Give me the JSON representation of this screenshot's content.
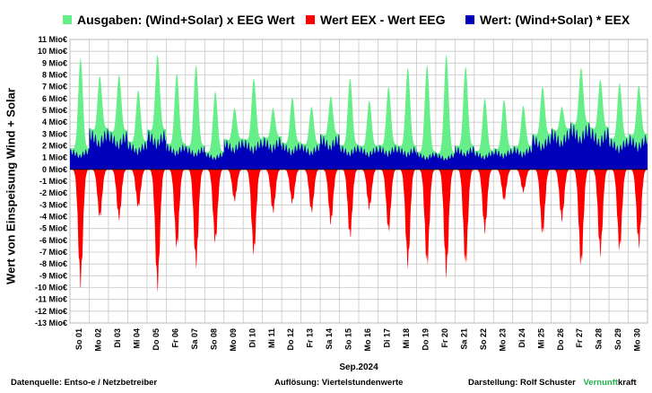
{
  "legend": [
    {
      "label": "Ausgaben: (Wind+Solar) x EEG Wert",
      "color": "#66ee88"
    },
    {
      "label": "Wert EEX - Wert EEG",
      "color": "#ff0000"
    },
    {
      "label": "Wert: (Wind+Solar) * EEX",
      "color": "#0000bb"
    }
  ],
  "footer": {
    "source": "Datenquelle:  Entso-e  / Netzbetreiber",
    "resolution": "Auflösung: Viertelstundenwerte",
    "author_prefix": "Darstellung:  Rolf Schuster",
    "brand_green": "Vernunft",
    "brand_black": "kraft"
  },
  "chart_data": {
    "type": "area",
    "ylabel": "Wert von Einspeisung Wind + Solar",
    "xlabel": "Sep.2024",
    "y_unit": "Mio€",
    "ylim": [
      -13,
      11
    ],
    "y_ticks": [
      "11 Mio€",
      "10 Mio€",
      "9 Mio€",
      "8 Mio€",
      "7 Mio€",
      "6 Mio€",
      "5 Mio€",
      "4 Mio€",
      "3 Mio€",
      "2 Mio€",
      "1 Mio€",
      "0 Mio€",
      "-1 Mio€",
      "-2 Mio€",
      "-3 Mio€",
      "-4 Mio€",
      "-5 Mio€",
      "-6 Mio€",
      "-7 Mio€",
      "-8 Mio€",
      "-9 Mio€",
      "-10 Mio€",
      "-11 Mio€",
      "-12 Mio€",
      "-13 Mio€"
    ],
    "categories": [
      "So 01",
      "Mo 02",
      "Di 03",
      "Mi 04",
      "Do 05",
      "Fr 06",
      "Sa 07",
      "So 08",
      "Mo 09",
      "Di 10",
      "Mi 11",
      "Do 12",
      "Fr 13",
      "Sa 14",
      "So 15",
      "Mo 16",
      "Di 17",
      "Mi 18",
      "Do 19",
      "Fr 20",
      "Sa 21",
      "So 22",
      "Mo 23",
      "Di 24",
      "Mi 25",
      "Do 26",
      "Fr 27",
      "Sa 28",
      "So 29",
      "Mo 30"
    ],
    "grid": true,
    "legend_position": "top",
    "series": [
      {
        "name": "Ausgaben: (Wind+Solar) x EEG Wert",
        "color": "#66ee88",
        "daily_peak": [
          9.4,
          7.9,
          8.0,
          6.7,
          9.7,
          8.1,
          8.8,
          6.6,
          5.2,
          7.7,
          5.2,
          6.1,
          5.3,
          6.2,
          7.7,
          5.8,
          7.0,
          8.6,
          8.8,
          9.7,
          8.7,
          6.0,
          5.9,
          5.4,
          7.0,
          5.3,
          8.6,
          7.6,
          7.3,
          7.1
        ]
      },
      {
        "name": "Wert EEX - Wert EEG",
        "color": "#ff0000",
        "daily_min": [
          -10.2,
          -4.3,
          -4.4,
          -3.4,
          -10.5,
          -7.0,
          -8.5,
          -6.5,
          -2.8,
          -7.5,
          -3.8,
          -3.0,
          -3.8,
          -4.8,
          -6.0,
          -3.5,
          -5.5,
          -8.5,
          -8.5,
          -9.3,
          -8.5,
          -5.5,
          -2.8,
          -2.0,
          -5.8,
          -4.5,
          -8.6,
          -7.5,
          -7.2,
          -6.8
        ]
      },
      {
        "name": "Wert: (Wind+Solar) * EEX",
        "color": "#0000bb",
        "daily_peak": [
          1.8,
          3.5,
          3.3,
          2.4,
          3.4,
          2.2,
          2.0,
          1.5,
          2.6,
          2.6,
          2.8,
          2.3,
          2.2,
          3.0,
          2.1,
          2.0,
          2.1,
          2.0,
          1.5,
          1.4,
          2.0,
          1.6,
          1.8,
          2.0,
          3.0,
          3.5,
          4.0,
          3.6,
          2.7,
          3.0
        ]
      }
    ]
  }
}
